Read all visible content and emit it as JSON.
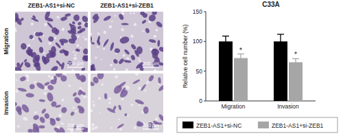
{
  "figure_panels": {
    "column_labels": [
      "ZEB1-AS1+si-NC",
      "ZEB1-AS1+si-ZEB1"
    ],
    "row_labels": [
      "Migration",
      "Invasion"
    ],
    "scale_bars": [
      "200 µm",
      "200 µm",
      "200 µm",
      "200 µm"
    ]
  },
  "chart_data": {
    "type": "bar",
    "title": "C33A",
    "y_label": "Relative cell number (%)",
    "categories": [
      "Migration",
      "Invasion"
    ],
    "series": [
      {
        "name": "ZEB1-AS1+si-NC",
        "color": "#000000",
        "values": [
          100,
          100
        ],
        "errors": [
          9,
          12
        ]
      },
      {
        "name": "ZEB1-AS1+si-ZEB1",
        "color": "#a6a6a6",
        "values": [
          72,
          65
        ],
        "errors": [
          7,
          6
        ],
        "annotations": [
          "*",
          "*"
        ]
      }
    ],
    "ylim": [
      0,
      150
    ],
    "yticks": [
      0,
      50,
      100,
      150
    ],
    "legend": "bottom"
  }
}
